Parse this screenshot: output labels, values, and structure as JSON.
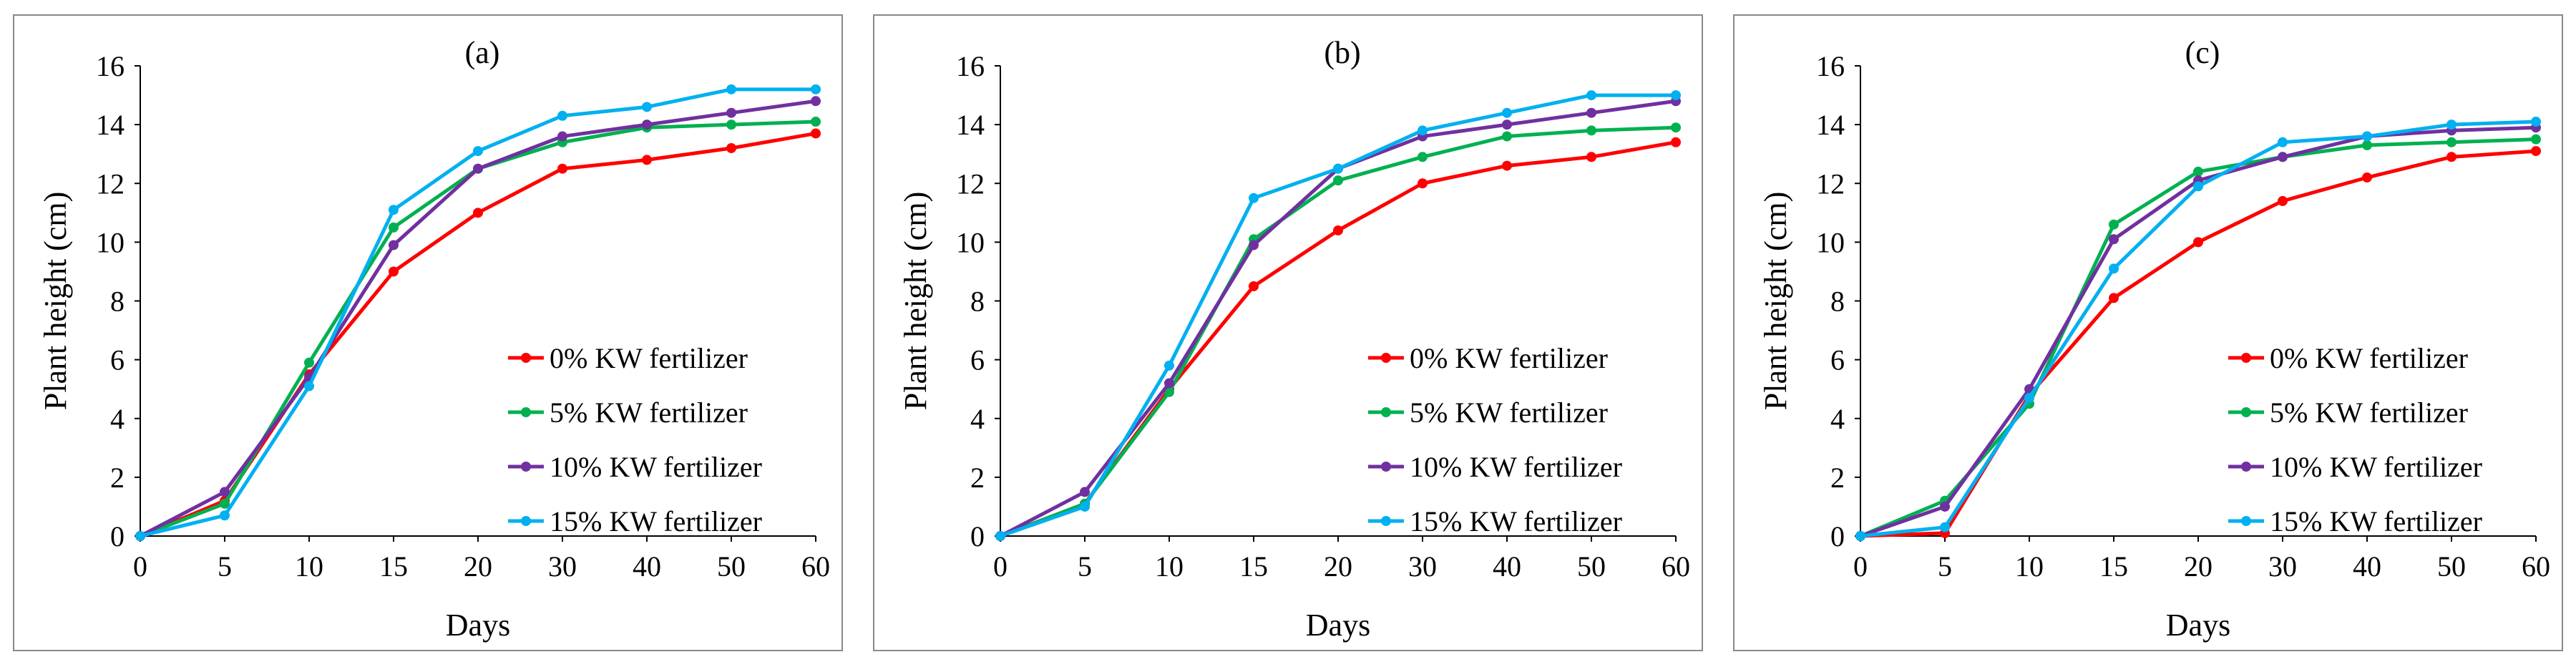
{
  "chart_data": [
    {
      "type": "line",
      "title": "(a)",
      "xlabel": "Days",
      "ylabel": "Plant height (cm)",
      "ylim": [
        0,
        16
      ],
      "yticks": [
        "0",
        "2",
        "4",
        "6",
        "8",
        "10",
        "12",
        "14",
        "16"
      ],
      "categories": [
        "0",
        "5",
        "10",
        "15",
        "20",
        "30",
        "40",
        "50",
        "60"
      ],
      "legend_position": "bottom-right",
      "series": [
        {
          "name": "0% KW fertilizer",
          "color": "#ff0000",
          "values": [
            0,
            1.2,
            5.5,
            9.0,
            11.0,
            12.5,
            12.8,
            13.2,
            13.7
          ]
        },
        {
          "name": "5% KW fertilizer",
          "color": "#00b050",
          "values": [
            0,
            1.1,
            5.9,
            10.5,
            12.5,
            13.4,
            13.9,
            14.0,
            14.1
          ]
        },
        {
          "name": "10% KW fertilizer",
          "color": "#7030a0",
          "values": [
            0,
            1.5,
            5.4,
            9.9,
            12.5,
            13.6,
            14.0,
            14.4,
            14.8
          ]
        },
        {
          "name": "15% KW fertilizer",
          "color": "#00b0f0",
          "values": [
            0,
            0.7,
            5.1,
            11.1,
            13.1,
            14.3,
            14.6,
            15.2,
            15.2
          ]
        }
      ]
    },
    {
      "type": "line",
      "title": "(b)",
      "xlabel": "Days",
      "ylabel": "Plant height (cm)",
      "ylim": [
        0,
        16
      ],
      "yticks": [
        "0",
        "2",
        "4",
        "6",
        "8",
        "10",
        "12",
        "14",
        "16"
      ],
      "categories": [
        "0",
        "5",
        "10",
        "15",
        "20",
        "30",
        "40",
        "50",
        "60"
      ],
      "legend_position": "bottom-right",
      "series": [
        {
          "name": "0% KW fertilizer",
          "color": "#ff0000",
          "values": [
            0,
            1.1,
            5.0,
            8.5,
            10.4,
            12.0,
            12.6,
            12.9,
            13.4
          ]
        },
        {
          "name": "5% KW fertilizer",
          "color": "#00b050",
          "values": [
            0,
            1.1,
            4.9,
            10.1,
            12.1,
            12.9,
            13.6,
            13.8,
            13.9
          ]
        },
        {
          "name": "10% KW fertilizer",
          "color": "#7030a0",
          "values": [
            0,
            1.5,
            5.2,
            9.9,
            12.5,
            13.6,
            14.0,
            14.4,
            14.8
          ]
        },
        {
          "name": "15% KW fertilizer",
          "color": "#00b0f0",
          "values": [
            0,
            1.0,
            5.8,
            11.5,
            12.5,
            13.8,
            14.4,
            15.0,
            15.0
          ]
        }
      ]
    },
    {
      "type": "line",
      "title": "(c)",
      "xlabel": "Days",
      "ylabel": "Plant height (cm)",
      "ylim": [
        0,
        16
      ],
      "yticks": [
        "0",
        "2",
        "4",
        "6",
        "8",
        "10",
        "12",
        "14",
        "16"
      ],
      "categories": [
        "0",
        "5",
        "10",
        "15",
        "20",
        "30",
        "40",
        "50",
        "60"
      ],
      "legend_position": "bottom-right",
      "series": [
        {
          "name": "0% KW fertilizer",
          "color": "#ff0000",
          "values": [
            0,
            0.1,
            4.8,
            8.1,
            10.0,
            11.4,
            12.2,
            12.9,
            13.1
          ]
        },
        {
          "name": "5% KW fertilizer",
          "color": "#00b050",
          "values": [
            0,
            1.2,
            4.5,
            10.6,
            12.4,
            12.9,
            13.3,
            13.4,
            13.5
          ]
        },
        {
          "name": "10% KW fertilizer",
          "color": "#7030a0",
          "values": [
            0,
            1.0,
            5.0,
            10.1,
            12.1,
            12.9,
            13.6,
            13.8,
            13.9
          ]
        },
        {
          "name": "15% KW fertilizer",
          "color": "#00b0f0",
          "values": [
            0,
            0.3,
            4.7,
            9.1,
            11.9,
            13.4,
            13.6,
            14.0,
            14.1
          ]
        }
      ]
    }
  ]
}
